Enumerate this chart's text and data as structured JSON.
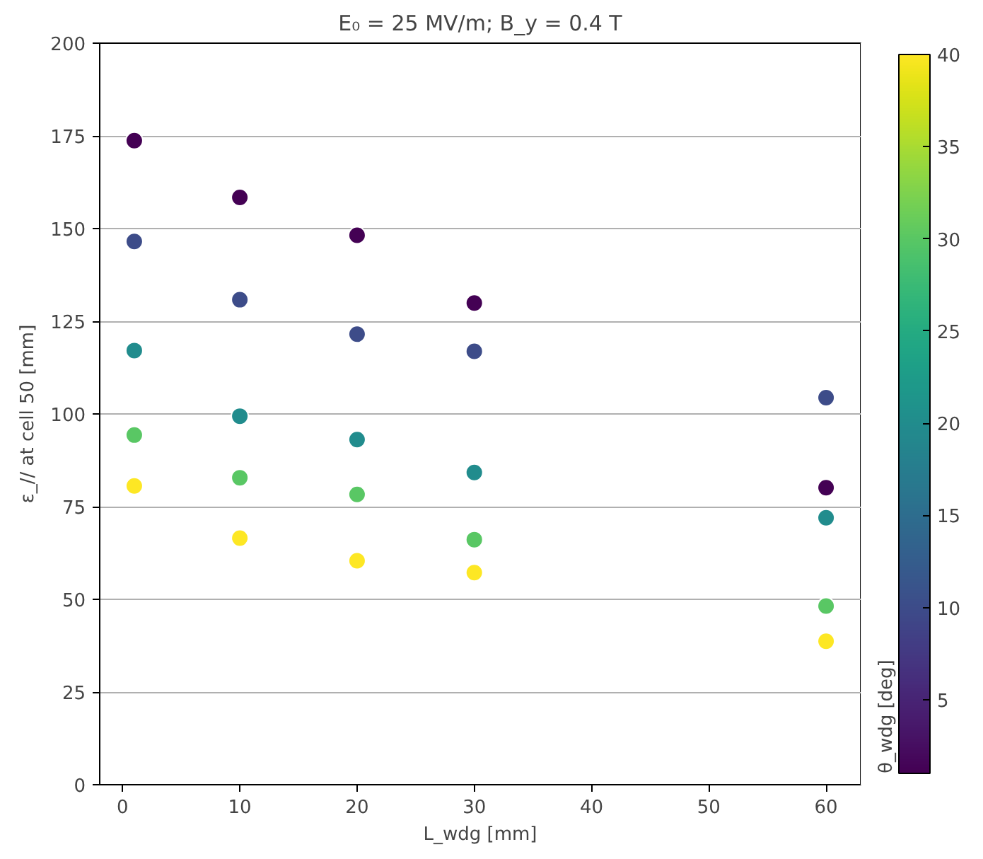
{
  "chart_data": {
    "type": "scatter",
    "title": "E₀ = 25 MV/m; B_y = 0.4 T",
    "xlabel": "L_wdg [mm]",
    "ylabel": "ε_// at cell 50 [mm]",
    "clabel": "θ_wdg [deg]",
    "x": [
      1,
      1,
      1,
      1,
      1,
      10,
      10,
      10,
      10,
      10,
      20,
      20,
      20,
      20,
      20,
      30,
      30,
      30,
      30,
      30,
      60,
      60,
      60,
      60,
      60
    ],
    "values": [
      173.7,
      146.5,
      117.1,
      94.3,
      80.6,
      158.4,
      130.8,
      99.4,
      82.8,
      66.5,
      148.2,
      121.5,
      93.1,
      78.3,
      60.4,
      129.9,
      116.9,
      84.2,
      66.1,
      57.2,
      80.1,
      104.4,
      72.0,
      48.2,
      38.7
    ],
    "cvalues": [
      1,
      10,
      20,
      30,
      40,
      1,
      10,
      20,
      30,
      40,
      1,
      10,
      20,
      30,
      40,
      1,
      10,
      20,
      30,
      40,
      1,
      10,
      20,
      30,
      40
    ],
    "clim": [
      1,
      40
    ],
    "cticks": [
      5,
      10,
      15,
      20,
      25,
      30,
      35,
      40
    ],
    "xlim": [
      -1.95,
      62.95
    ],
    "ylim": [
      0,
      200
    ],
    "xticks": [
      0,
      10,
      20,
      30,
      40,
      50,
      60
    ],
    "yticks": [
      0,
      25,
      50,
      75,
      100,
      125,
      150,
      175,
      200
    ],
    "grid": "y",
    "marker": "circle"
  }
}
